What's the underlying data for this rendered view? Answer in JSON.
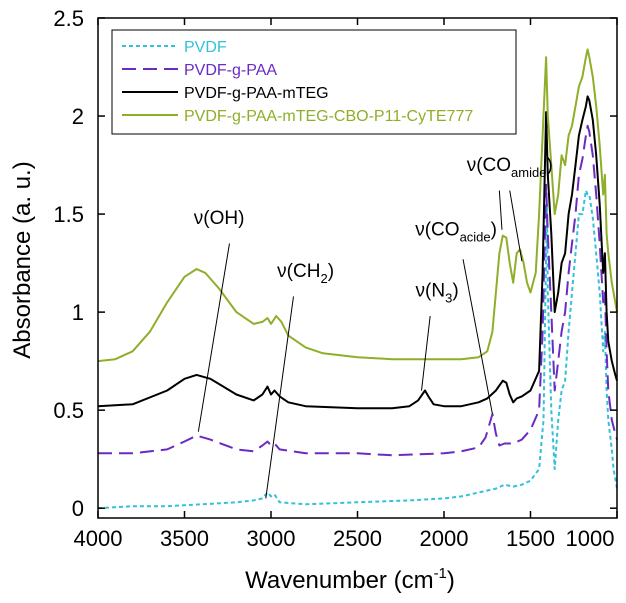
{
  "chart_data": {
    "type": "line",
    "title": "",
    "xlabel": "Wavenumber (cm",
    "xlabel_sup": "-1",
    "xlabel_end": ")",
    "ylabel": "Absorbance (a. u.)",
    "xlim": [
      4000,
      1000
    ],
    "ylim": [
      -0.05,
      2.5
    ],
    "x_ticks": [
      "4000",
      "3500",
      "3000",
      "2500",
      "2000",
      "1500",
      "1000"
    ],
    "y_ticks": [
      "0",
      "0.5",
      "1",
      "1.5",
      "2",
      "2.5"
    ],
    "legend_position": "top-left",
    "series": [
      {
        "name": "PVDF",
        "color": "#33c1d9",
        "dash": "dashed",
        "points": [
          [
            4000,
            0.0
          ],
          [
            3800,
            0.01
          ],
          [
            3600,
            0.01
          ],
          [
            3400,
            0.02
          ],
          [
            3200,
            0.03
          ],
          [
            3100,
            0.04
          ],
          [
            3050,
            0.05
          ],
          [
            3020,
            0.08
          ],
          [
            3000,
            0.06
          ],
          [
            2980,
            0.07
          ],
          [
            2950,
            0.03
          ],
          [
            2800,
            0.02
          ],
          [
            2500,
            0.03
          ],
          [
            2200,
            0.04
          ],
          [
            2000,
            0.05
          ],
          [
            1900,
            0.06
          ],
          [
            1800,
            0.08
          ],
          [
            1700,
            0.1
          ],
          [
            1650,
            0.12
          ],
          [
            1600,
            0.11
          ],
          [
            1550,
            0.12
          ],
          [
            1500,
            0.14
          ],
          [
            1450,
            0.2
          ],
          [
            1425,
            0.45
          ],
          [
            1405,
            1.55
          ],
          [
            1400,
            1.1
          ],
          [
            1380,
            0.5
          ],
          [
            1360,
            0.2
          ],
          [
            1340,
            0.45
          ],
          [
            1320,
            0.6
          ],
          [
            1300,
            0.65
          ],
          [
            1280,
            0.9
          ],
          [
            1260,
            1.1
          ],
          [
            1240,
            1.3
          ],
          [
            1220,
            1.5
          ],
          [
            1200,
            1.5
          ],
          [
            1180,
            1.62
          ],
          [
            1170,
            1.6
          ],
          [
            1160,
            1.6
          ],
          [
            1140,
            1.48
          ],
          [
            1120,
            1.3
          ],
          [
            1100,
            1.1
          ],
          [
            1080,
            0.8
          ],
          [
            1070,
            0.9
          ],
          [
            1060,
            0.6
          ],
          [
            1050,
            0.45
          ],
          [
            1030,
            0.3
          ],
          [
            1020,
            0.2
          ],
          [
            1010,
            0.15
          ],
          [
            1000,
            0.1
          ]
        ]
      },
      {
        "name": "PVDF-g-PAA",
        "color": "#6a2bc4",
        "dash": "longdash",
        "points": [
          [
            4000,
            0.28
          ],
          [
            3800,
            0.28
          ],
          [
            3600,
            0.3
          ],
          [
            3500,
            0.34
          ],
          [
            3430,
            0.37
          ],
          [
            3350,
            0.35
          ],
          [
            3200,
            0.3
          ],
          [
            3100,
            0.29
          ],
          [
            3050,
            0.32
          ],
          [
            3020,
            0.34
          ],
          [
            3000,
            0.32
          ],
          [
            2980,
            0.33
          ],
          [
            2950,
            0.3
          ],
          [
            2800,
            0.28
          ],
          [
            2500,
            0.28
          ],
          [
            2300,
            0.27
          ],
          [
            2000,
            0.28
          ],
          [
            1900,
            0.29
          ],
          [
            1800,
            0.31
          ],
          [
            1760,
            0.36
          ],
          [
            1730,
            0.45
          ],
          [
            1720,
            0.48
          ],
          [
            1700,
            0.38
          ],
          [
            1680,
            0.32
          ],
          [
            1650,
            0.33
          ],
          [
            1600,
            0.33
          ],
          [
            1550,
            0.35
          ],
          [
            1500,
            0.4
          ],
          [
            1450,
            0.5
          ],
          [
            1430,
            0.9
          ],
          [
            1410,
            1.65
          ],
          [
            1400,
            1.4
          ],
          [
            1380,
            1.0
          ],
          [
            1360,
            0.6
          ],
          [
            1340,
            0.75
          ],
          [
            1320,
            0.9
          ],
          [
            1300,
            1.0
          ],
          [
            1280,
            1.2
          ],
          [
            1260,
            1.35
          ],
          [
            1240,
            1.5
          ],
          [
            1220,
            1.7
          ],
          [
            1200,
            1.78
          ],
          [
            1180,
            1.9
          ],
          [
            1170,
            1.95
          ],
          [
            1160,
            1.92
          ],
          [
            1140,
            1.8
          ],
          [
            1120,
            1.6
          ],
          [
            1100,
            1.35
          ],
          [
            1080,
            1.05
          ],
          [
            1070,
            1.1
          ],
          [
            1060,
            0.8
          ],
          [
            1050,
            0.6
          ],
          [
            1030,
            0.45
          ],
          [
            1010,
            0.38
          ],
          [
            1000,
            0.35
          ]
        ]
      },
      {
        "name": "PVDF-g-PAA-mTEG",
        "color": "#000000",
        "dash": "solid",
        "points": [
          [
            4000,
            0.52
          ],
          [
            3800,
            0.53
          ],
          [
            3600,
            0.6
          ],
          [
            3500,
            0.66
          ],
          [
            3430,
            0.68
          ],
          [
            3350,
            0.66
          ],
          [
            3200,
            0.58
          ],
          [
            3100,
            0.55
          ],
          [
            3050,
            0.58
          ],
          [
            3020,
            0.62
          ],
          [
            3000,
            0.58
          ],
          [
            2980,
            0.6
          ],
          [
            2950,
            0.57
          ],
          [
            2900,
            0.54
          ],
          [
            2800,
            0.52
          ],
          [
            2500,
            0.51
          ],
          [
            2300,
            0.51
          ],
          [
            2200,
            0.52
          ],
          [
            2150,
            0.55
          ],
          [
            2110,
            0.6
          ],
          [
            2090,
            0.57
          ],
          [
            2060,
            0.53
          ],
          [
            2000,
            0.52
          ],
          [
            1900,
            0.52
          ],
          [
            1800,
            0.54
          ],
          [
            1750,
            0.56
          ],
          [
            1700,
            0.6
          ],
          [
            1660,
            0.65
          ],
          [
            1640,
            0.64
          ],
          [
            1620,
            0.58
          ],
          [
            1600,
            0.54
          ],
          [
            1580,
            0.56
          ],
          [
            1550,
            0.57
          ],
          [
            1500,
            0.6
          ],
          [
            1450,
            0.7
          ],
          [
            1430,
            1.2
          ],
          [
            1410,
            2.02
          ],
          [
            1400,
            1.7
          ],
          [
            1380,
            1.4
          ],
          [
            1360,
            1.0
          ],
          [
            1340,
            1.1
          ],
          [
            1320,
            1.25
          ],
          [
            1300,
            1.3
          ],
          [
            1280,
            1.5
          ],
          [
            1260,
            1.6
          ],
          [
            1240,
            1.75
          ],
          [
            1220,
            1.9
          ],
          [
            1200,
            1.98
          ],
          [
            1180,
            2.05
          ],
          [
            1170,
            2.1
          ],
          [
            1160,
            2.08
          ],
          [
            1140,
            1.98
          ],
          [
            1120,
            1.8
          ],
          [
            1100,
            1.55
          ],
          [
            1080,
            1.2
          ],
          [
            1070,
            1.3
          ],
          [
            1060,
            1.0
          ],
          [
            1050,
            0.85
          ],
          [
            1030,
            0.75
          ],
          [
            1010,
            0.68
          ],
          [
            1000,
            0.65
          ]
        ]
      },
      {
        "name": "PVDF-g-PAA-mTEG-CBO-P11-CyTE777",
        "color": "#8fae2a",
        "dash": "solid",
        "points": [
          [
            4000,
            0.75
          ],
          [
            3900,
            0.76
          ],
          [
            3800,
            0.8
          ],
          [
            3700,
            0.9
          ],
          [
            3600,
            1.05
          ],
          [
            3500,
            1.18
          ],
          [
            3430,
            1.22
          ],
          [
            3380,
            1.2
          ],
          [
            3300,
            1.12
          ],
          [
            3200,
            1.0
          ],
          [
            3100,
            0.94
          ],
          [
            3050,
            0.95
          ],
          [
            3020,
            0.97
          ],
          [
            3000,
            0.94
          ],
          [
            2970,
            0.98
          ],
          [
            2940,
            0.95
          ],
          [
            2900,
            0.88
          ],
          [
            2800,
            0.82
          ],
          [
            2700,
            0.79
          ],
          [
            2500,
            0.77
          ],
          [
            2300,
            0.76
          ],
          [
            2000,
            0.76
          ],
          [
            1900,
            0.76
          ],
          [
            1800,
            0.77
          ],
          [
            1750,
            0.8
          ],
          [
            1720,
            0.9
          ],
          [
            1700,
            1.1
          ],
          [
            1680,
            1.3
          ],
          [
            1660,
            1.39
          ],
          [
            1640,
            1.38
          ],
          [
            1620,
            1.25
          ],
          [
            1600,
            1.15
          ],
          [
            1580,
            1.3
          ],
          [
            1560,
            1.32
          ],
          [
            1540,
            1.25
          ],
          [
            1520,
            1.15
          ],
          [
            1500,
            1.1
          ],
          [
            1470,
            1.2
          ],
          [
            1450,
            1.5
          ],
          [
            1430,
            1.9
          ],
          [
            1410,
            2.3
          ],
          [
            1400,
            2.0
          ],
          [
            1380,
            1.75
          ],
          [
            1360,
            1.5
          ],
          [
            1340,
            1.6
          ],
          [
            1320,
            1.8
          ],
          [
            1300,
            1.75
          ],
          [
            1280,
            1.9
          ],
          [
            1260,
            1.95
          ],
          [
            1240,
            2.05
          ],
          [
            1220,
            2.15
          ],
          [
            1200,
            2.2
          ],
          [
            1180,
            2.3
          ],
          [
            1170,
            2.34
          ],
          [
            1160,
            2.3
          ],
          [
            1140,
            2.2
          ],
          [
            1120,
            2.05
          ],
          [
            1100,
            1.85
          ],
          [
            1080,
            1.6
          ],
          [
            1070,
            1.7
          ],
          [
            1060,
            1.4
          ],
          [
            1050,
            1.3
          ],
          [
            1030,
            1.15
          ],
          [
            1010,
            1.05
          ],
          [
            1000,
            1.0
          ]
        ]
      }
    ],
    "annotations": [
      {
        "id": "oh",
        "label": "ν(OH)",
        "sub": "",
        "suffix": "",
        "text_x": 3300,
        "text_y": 1.45,
        "line": [
          [
            3240,
            1.35
          ],
          [
            3420,
            0.39
          ]
        ]
      },
      {
        "id": "ch2",
        "label": "ν(CH",
        "sub": "2",
        "suffix": ")",
        "text_x": 2800,
        "text_y": 1.18,
        "line": [
          [
            2870,
            1.08
          ],
          [
            3030,
            0.05
          ]
        ]
      },
      {
        "id": "n3",
        "label": "ν(N",
        "sub": "3",
        "suffix": ")",
        "text_x": 2040,
        "text_y": 1.08,
        "line": [
          [
            2080,
            0.98
          ],
          [
            2130,
            0.6
          ]
        ]
      },
      {
        "id": "coacide",
        "label": "ν(CO",
        "sub": "acide",
        "suffix": ")",
        "text_x": 1930,
        "text_y": 1.39,
        "line": [
          [
            1890,
            1.27
          ],
          [
            1720,
            0.48
          ]
        ]
      },
      {
        "id": "coamide",
        "label": "ν(CO",
        "sub": "amide",
        "suffix": ")",
        "text_x": 1620,
        "text_y": 1.72,
        "line": [
          [
            1680,
            1.62
          ],
          [
            1665,
            1.42
          ]
        ],
        "line2": [
          [
            1620,
            1.62
          ],
          [
            1550,
            1.26
          ]
        ]
      }
    ]
  }
}
